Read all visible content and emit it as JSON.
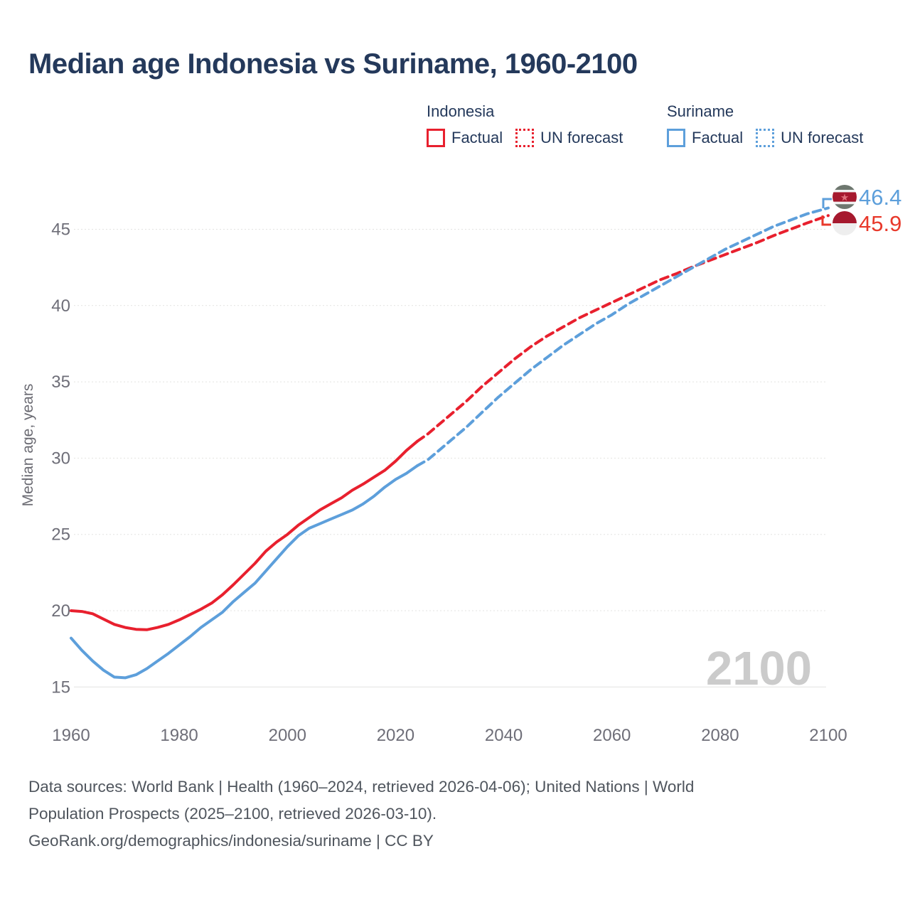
{
  "title": "Median age Indonesia vs Suriname, 1960-2100",
  "watermark": "2100",
  "legend": {
    "groups": [
      {
        "country": "Indonesia",
        "color": "#e8202e",
        "items": [
          {
            "label": "Factual",
            "style": "solid"
          },
          {
            "label": "UN forecast",
            "style": "dotted"
          }
        ]
      },
      {
        "country": "Suriname",
        "color": "#5d9fdb",
        "items": [
          {
            "label": "Factual",
            "style": "solid"
          },
          {
            "label": "UN forecast",
            "style": "dotted"
          }
        ]
      }
    ]
  },
  "footer": {
    "line1": "Data sources: World Bank | Health (1960–2024, retrieved 2026-04-06); United Nations | World",
    "line2": "Population Prospects (2025–2100, retrieved 2026-03-10).",
    "line3": "GeoRank.org/demographics/indonesia/suriname | CC BY"
  },
  "icons": {
    "suriname_star": "★"
  },
  "chart_data": {
    "type": "line",
    "title": "Median age Indonesia vs Suriname, 1960-2100",
    "xlabel": "",
    "ylabel": "Median age, years",
    "xlim": [
      1960,
      2100
    ],
    "ylim": [
      13,
      48
    ],
    "xticks": [
      1960,
      1980,
      2000,
      2020,
      2040,
      2060,
      2080,
      2100
    ],
    "yticks": [
      15,
      20,
      25,
      30,
      35,
      40,
      45
    ],
    "grid": "horizontal",
    "legend_position": "top",
    "series": [
      {
        "name": "Indonesia Factual",
        "color": "#e8202e",
        "dash": "solid",
        "points": [
          [
            1960,
            20.0
          ],
          [
            1962,
            19.95
          ],
          [
            1964,
            19.8
          ],
          [
            1966,
            19.45
          ],
          [
            1968,
            19.1
          ],
          [
            1970,
            18.9
          ],
          [
            1972,
            18.78
          ],
          [
            1974,
            18.75
          ],
          [
            1976,
            18.9
          ],
          [
            1978,
            19.1
          ],
          [
            1980,
            19.4
          ],
          [
            1982,
            19.75
          ],
          [
            1984,
            20.1
          ],
          [
            1986,
            20.5
          ],
          [
            1988,
            21.05
          ],
          [
            1990,
            21.7
          ],
          [
            1992,
            22.4
          ],
          [
            1994,
            23.1
          ],
          [
            1996,
            23.9
          ],
          [
            1998,
            24.5
          ],
          [
            2000,
            25.0
          ],
          [
            2002,
            25.6
          ],
          [
            2004,
            26.1
          ],
          [
            2006,
            26.6
          ],
          [
            2008,
            27.0
          ],
          [
            2010,
            27.4
          ],
          [
            2012,
            27.9
          ],
          [
            2014,
            28.3
          ],
          [
            2016,
            28.75
          ],
          [
            2018,
            29.2
          ],
          [
            2020,
            29.8
          ],
          [
            2022,
            30.5
          ],
          [
            2024,
            31.1
          ]
        ]
      },
      {
        "name": "Indonesia UN forecast",
        "color": "#e8202e",
        "dash": "dashed",
        "points": [
          [
            2024,
            31.1
          ],
          [
            2026,
            31.6
          ],
          [
            2028,
            32.2
          ],
          [
            2030,
            32.8
          ],
          [
            2033,
            33.7
          ],
          [
            2036,
            34.7
          ],
          [
            2039,
            35.6
          ],
          [
            2042,
            36.5
          ],
          [
            2045,
            37.3
          ],
          [
            2048,
            38.0
          ],
          [
            2051,
            38.6
          ],
          [
            2054,
            39.2
          ],
          [
            2057,
            39.7
          ],
          [
            2060,
            40.2
          ],
          [
            2063,
            40.7
          ],
          [
            2066,
            41.2
          ],
          [
            2069,
            41.7
          ],
          [
            2072,
            42.1
          ],
          [
            2075,
            42.55
          ],
          [
            2078,
            42.95
          ],
          [
            2081,
            43.35
          ],
          [
            2084,
            43.75
          ],
          [
            2087,
            44.15
          ],
          [
            2090,
            44.6
          ],
          [
            2093,
            45.0
          ],
          [
            2096,
            45.4
          ],
          [
            2100,
            45.9
          ]
        ]
      },
      {
        "name": "Suriname Factual",
        "color": "#5d9fdb",
        "dash": "solid",
        "points": [
          [
            1960,
            18.2
          ],
          [
            1962,
            17.4
          ],
          [
            1964,
            16.7
          ],
          [
            1966,
            16.1
          ],
          [
            1968,
            15.65
          ],
          [
            1970,
            15.6
          ],
          [
            1972,
            15.8
          ],
          [
            1974,
            16.2
          ],
          [
            1976,
            16.7
          ],
          [
            1978,
            17.2
          ],
          [
            1980,
            17.75
          ],
          [
            1982,
            18.3
          ],
          [
            1984,
            18.9
          ],
          [
            1986,
            19.4
          ],
          [
            1988,
            19.9
          ],
          [
            1990,
            20.6
          ],
          [
            1992,
            21.2
          ],
          [
            1994,
            21.8
          ],
          [
            1996,
            22.6
          ],
          [
            1998,
            23.4
          ],
          [
            2000,
            24.2
          ],
          [
            2002,
            24.9
          ],
          [
            2004,
            25.4
          ],
          [
            2006,
            25.7
          ],
          [
            2008,
            26.0
          ],
          [
            2010,
            26.3
          ],
          [
            2012,
            26.6
          ],
          [
            2014,
            27.0
          ],
          [
            2016,
            27.5
          ],
          [
            2018,
            28.1
          ],
          [
            2020,
            28.6
          ],
          [
            2022,
            29.0
          ],
          [
            2024,
            29.5
          ]
        ]
      },
      {
        "name": "Suriname UN forecast",
        "color": "#5d9fdb",
        "dash": "dashed",
        "points": [
          [
            2024,
            29.5
          ],
          [
            2026,
            29.9
          ],
          [
            2028,
            30.5
          ],
          [
            2030,
            31.1
          ],
          [
            2033,
            32.0
          ],
          [
            2036,
            33.0
          ],
          [
            2039,
            34.0
          ],
          [
            2042,
            34.9
          ],
          [
            2045,
            35.8
          ],
          [
            2048,
            36.6
          ],
          [
            2051,
            37.4
          ],
          [
            2054,
            38.1
          ],
          [
            2057,
            38.8
          ],
          [
            2060,
            39.4
          ],
          [
            2063,
            40.1
          ],
          [
            2066,
            40.7
          ],
          [
            2069,
            41.3
          ],
          [
            2072,
            41.9
          ],
          [
            2075,
            42.5
          ],
          [
            2078,
            43.1
          ],
          [
            2081,
            43.7
          ],
          [
            2084,
            44.2
          ],
          [
            2087,
            44.7
          ],
          [
            2090,
            45.2
          ],
          [
            2093,
            45.6
          ],
          [
            2096,
            46.0
          ],
          [
            2100,
            46.4
          ]
        ]
      }
    ],
    "end_labels": [
      {
        "series": "Suriname",
        "value": "46.4",
        "color": "#5d9fdb",
        "flag": "suriname"
      },
      {
        "series": "Indonesia",
        "value": "45.9",
        "color": "#e8392b",
        "flag": "indonesia"
      }
    ]
  }
}
